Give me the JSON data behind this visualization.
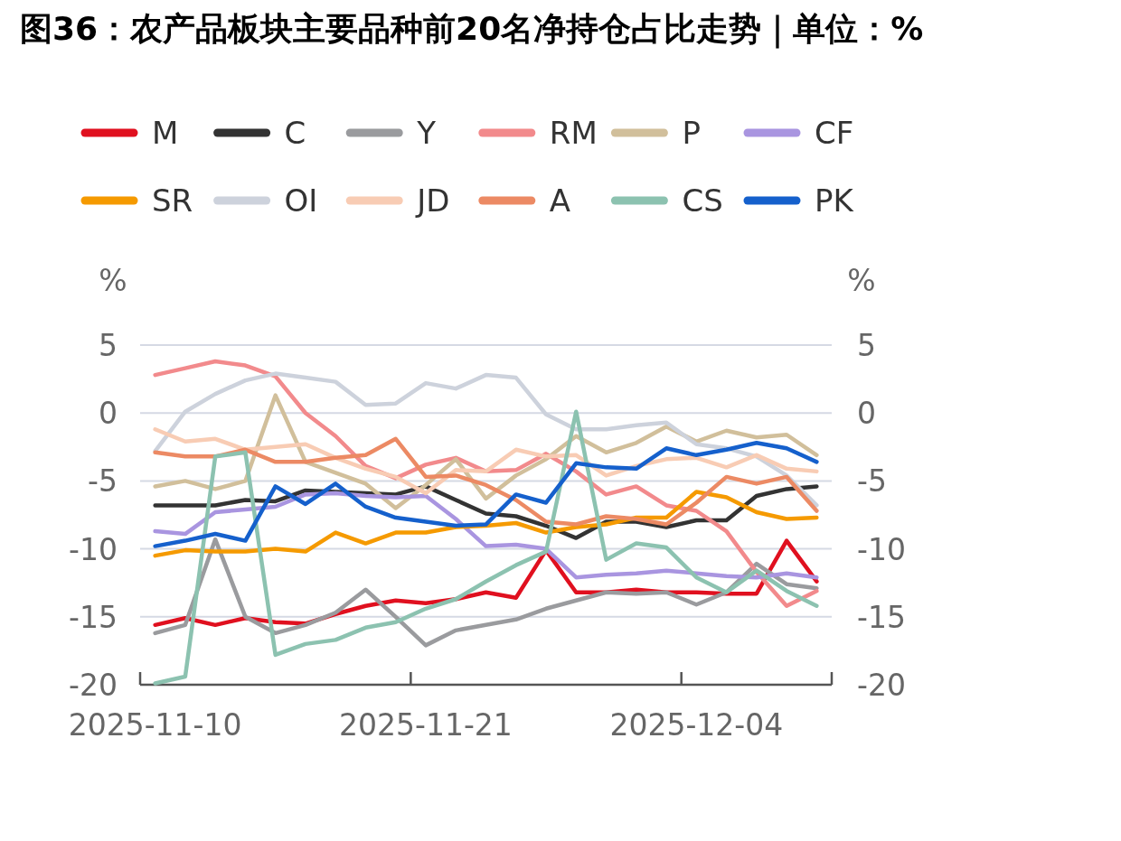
{
  "chart_data": {
    "type": "line",
    "title": "图36：农产品板块主要品种前20名净持仓占比走势｜单位：%",
    "categories": [
      "2025-11-10",
      null,
      null,
      null,
      null,
      null,
      null,
      null,
      null,
      "2025-11-21",
      null,
      null,
      null,
      null,
      null,
      null,
      null,
      null,
      "2025-12-04",
      null,
      null,
      null,
      null
    ],
    "ylabel": "%",
    "y2label": "%",
    "ylim": [
      -20,
      5
    ],
    "yticks": [
      -20,
      -15,
      -10,
      -5,
      0,
      5
    ],
    "y2lim": [
      -20,
      5
    ],
    "y2ticks": [
      -20,
      -15,
      -10,
      -5,
      0,
      5
    ],
    "grid": "y",
    "legend": "top",
    "marker": "none",
    "line_style": "solid",
    "series": [
      {
        "name": "M",
        "color": "#e0101f",
        "values": [
          -15.6,
          -15.1,
          -15.6,
          -15.1,
          -15.4,
          -15.5,
          -14.8,
          -14.2,
          -13.8,
          -14.0,
          -13.7,
          -13.2,
          -13.6,
          -10.1,
          -13.2,
          -13.2,
          -13.0,
          -13.2,
          -13.2,
          -13.3,
          -13.3,
          -9.4,
          -12.4
        ]
      },
      {
        "name": "C",
        "color": "#333333",
        "values": [
          -6.8,
          -6.8,
          -6.8,
          -6.4,
          -6.5,
          -5.7,
          -5.8,
          -5.9,
          -6.0,
          -5.4,
          -6.4,
          -7.4,
          -7.6,
          -8.3,
          -9.2,
          -8.0,
          -8.0,
          -8.4,
          -7.9,
          -7.9,
          -6.1,
          -5.6,
          -5.4
        ]
      },
      {
        "name": "Y",
        "color": "#9a9b9e",
        "values": [
          -16.2,
          -15.6,
          -9.3,
          -15.0,
          -16.2,
          -15.6,
          -14.7,
          -13.0,
          -15.0,
          -17.1,
          -16.0,
          -15.6,
          -15.2,
          -14.4,
          -13.8,
          -13.2,
          -13.3,
          -13.2,
          -14.1,
          -13.2,
          -11.1,
          -12.6,
          -12.9
        ]
      },
      {
        "name": "RM",
        "color": "#f28a8c",
        "values": [
          2.8,
          3.3,
          3.8,
          3.5,
          2.7,
          0.0,
          -1.7,
          -3.9,
          -4.8,
          -3.8,
          -3.3,
          -4.3,
          -4.2,
          -3.0,
          -4.3,
          -6.0,
          -5.4,
          -6.8,
          -7.2,
          -8.7,
          -11.7,
          -14.2,
          -13.1
        ]
      },
      {
        "name": "P",
        "color": "#d1bf9b",
        "values": [
          -5.4,
          -5.0,
          -5.6,
          -5.0,
          1.3,
          -3.6,
          -4.4,
          -5.2,
          -7.0,
          -5.3,
          -3.4,
          -6.3,
          -4.6,
          -3.4,
          -1.7,
          -2.9,
          -2.2,
          -1.0,
          -2.1,
          -1.3,
          -1.8,
          -1.6,
          -3.1
        ]
      },
      {
        "name": "CF",
        "color": "#a995e0",
        "values": [
          -8.7,
          -8.9,
          -7.3,
          -7.1,
          -6.9,
          -6.0,
          -5.9,
          -6.1,
          -6.2,
          -6.1,
          -7.8,
          -9.8,
          -9.7,
          -10.0,
          -12.1,
          -11.9,
          -11.8,
          -11.6,
          -11.8,
          -12.0,
          -12.1,
          -11.8,
          -12.1
        ]
      },
      {
        "name": "SR",
        "color": "#f59a00",
        "values": [
          -10.5,
          -10.1,
          -10.2,
          -10.2,
          -10.0,
          -10.2,
          -8.8,
          -9.6,
          -8.8,
          -8.8,
          -8.4,
          -8.3,
          -8.1,
          -8.8,
          -8.4,
          -8.2,
          -7.7,
          -7.7,
          -5.8,
          -6.2,
          -7.3,
          -7.8,
          -7.7
        ]
      },
      {
        "name": "OI",
        "color": "#cdd2dc",
        "values": [
          -2.8,
          0.1,
          1.4,
          2.4,
          2.9,
          2.6,
          2.3,
          0.6,
          0.7,
          2.2,
          1.8,
          2.8,
          2.6,
          -0.1,
          -1.2,
          -1.2,
          -0.9,
          -0.7,
          -2.3,
          -2.6,
          -3.2,
          -4.6,
          -6.8
        ]
      },
      {
        "name": "JD",
        "color": "#f8ccb4",
        "values": [
          -1.2,
          -2.1,
          -1.9,
          -2.7,
          -2.5,
          -2.3,
          -3.3,
          -4.1,
          -4.7,
          -5.9,
          -4.2,
          -4.3,
          -2.7,
          -3.2,
          -3.1,
          -4.6,
          -3.9,
          -3.4,
          -3.3,
          -4.0,
          -3.1,
          -4.1,
          -4.3
        ]
      },
      {
        "name": "A",
        "color": "#ec8a64",
        "values": [
          -2.9,
          -3.2,
          -3.2,
          -2.7,
          -3.6,
          -3.6,
          -3.3,
          -3.1,
          -1.9,
          -4.7,
          -4.6,
          -5.3,
          -6.4,
          -8.0,
          -8.2,
          -7.6,
          -7.8,
          -8.2,
          -6.6,
          -4.7,
          -5.2,
          -4.7,
          -7.2
        ]
      },
      {
        "name": "CS",
        "color": "#8cc2b0",
        "values": [
          -19.9,
          -19.4,
          -3.2,
          -2.9,
          -17.8,
          -17.0,
          -16.7,
          -15.8,
          -15.4,
          -14.4,
          -13.7,
          -12.4,
          -11.2,
          -10.2,
          0.1,
          -10.8,
          -9.6,
          -9.9,
          -12.1,
          -13.2,
          -11.6,
          -13.1,
          -14.2
        ]
      },
      {
        "name": "PK",
        "color": "#1560cc",
        "values": [
          -9.8,
          -9.4,
          -8.9,
          -9.4,
          -5.4,
          -6.7,
          -5.2,
          -6.9,
          -7.7,
          -8.0,
          -8.3,
          -8.2,
          -6.0,
          -6.6,
          -3.7,
          -4.0,
          -4.1,
          -2.6,
          -3.1,
          -2.7,
          -2.2,
          -2.6,
          -3.6
        ]
      }
    ]
  }
}
